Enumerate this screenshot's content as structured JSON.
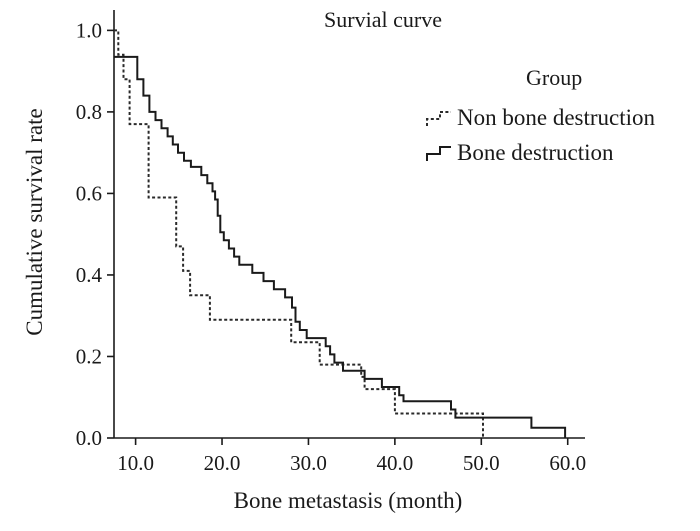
{
  "chart_data": {
    "type": "line",
    "step": true,
    "title": "Survial curve",
    "xlabel": "Bone metastasis (month)",
    "ylabel": "Cumulative survival rate",
    "xlim": [
      7.5,
      62
    ],
    "ylim": [
      0,
      1.05
    ],
    "xticks": [
      "10.0",
      "20.0",
      "30.0",
      "40.0",
      "50.0",
      "60.0"
    ],
    "yticks": [
      "0.0",
      "0.2",
      "0.4",
      "0.6",
      "0.8",
      "1.0"
    ],
    "legend": {
      "title": "Group",
      "position": "top-right"
    },
    "series": [
      {
        "name": "Non bone destruction",
        "style": "dotted",
        "points": [
          [
            7.5,
            1.0
          ],
          [
            8.0,
            0.94
          ],
          [
            8.6,
            0.88
          ],
          [
            9.3,
            0.77
          ],
          [
            10.6,
            0.77
          ],
          [
            11.5,
            0.59
          ],
          [
            14.3,
            0.59
          ],
          [
            14.7,
            0.47
          ],
          [
            15.5,
            0.41
          ],
          [
            16.3,
            0.35
          ],
          [
            18.3,
            0.35
          ],
          [
            18.6,
            0.29
          ],
          [
            27.5,
            0.29
          ],
          [
            28.0,
            0.235
          ],
          [
            31.0,
            0.235
          ],
          [
            31.3,
            0.18
          ],
          [
            35.8,
            0.18
          ],
          [
            36.1,
            0.15
          ],
          [
            36.5,
            0.12
          ],
          [
            39.5,
            0.12
          ],
          [
            40.0,
            0.06
          ],
          [
            46.6,
            0.06
          ],
          [
            47.0,
            0.06
          ],
          [
            50.2,
            0.06
          ],
          [
            50.2,
            0.0
          ]
        ]
      },
      {
        "name": "Bone destruction",
        "style": "solid",
        "points": [
          [
            7.5,
            0.935
          ],
          [
            9.5,
            0.935
          ],
          [
            10.2,
            0.88
          ],
          [
            10.9,
            0.84
          ],
          [
            11.6,
            0.8
          ],
          [
            12.3,
            0.78
          ],
          [
            13.0,
            0.76
          ],
          [
            13.7,
            0.74
          ],
          [
            14.3,
            0.72
          ],
          [
            14.9,
            0.7
          ],
          [
            15.6,
            0.68
          ],
          [
            16.4,
            0.665
          ],
          [
            17.6,
            0.645
          ],
          [
            18.3,
            0.625
          ],
          [
            18.9,
            0.605
          ],
          [
            19.2,
            0.585
          ],
          [
            19.5,
            0.545
          ],
          [
            19.8,
            0.505
          ],
          [
            20.2,
            0.485
          ],
          [
            20.8,
            0.465
          ],
          [
            21.4,
            0.445
          ],
          [
            22.0,
            0.425
          ],
          [
            23.5,
            0.405
          ],
          [
            24.8,
            0.385
          ],
          [
            26.0,
            0.365
          ],
          [
            27.3,
            0.345
          ],
          [
            28.1,
            0.32
          ],
          [
            28.5,
            0.285
          ],
          [
            29.0,
            0.265
          ],
          [
            29.8,
            0.245
          ],
          [
            32.0,
            0.225
          ],
          [
            32.5,
            0.205
          ],
          [
            33.0,
            0.185
          ],
          [
            34.0,
            0.165
          ],
          [
            36.5,
            0.145
          ],
          [
            38.5,
            0.125
          ],
          [
            40.5,
            0.105
          ],
          [
            41.0,
            0.09
          ],
          [
            46.5,
            0.07
          ],
          [
            47.0,
            0.05
          ],
          [
            52.0,
            0.05
          ],
          [
            55.8,
            0.025
          ],
          [
            59.7,
            0.0
          ]
        ]
      }
    ]
  }
}
